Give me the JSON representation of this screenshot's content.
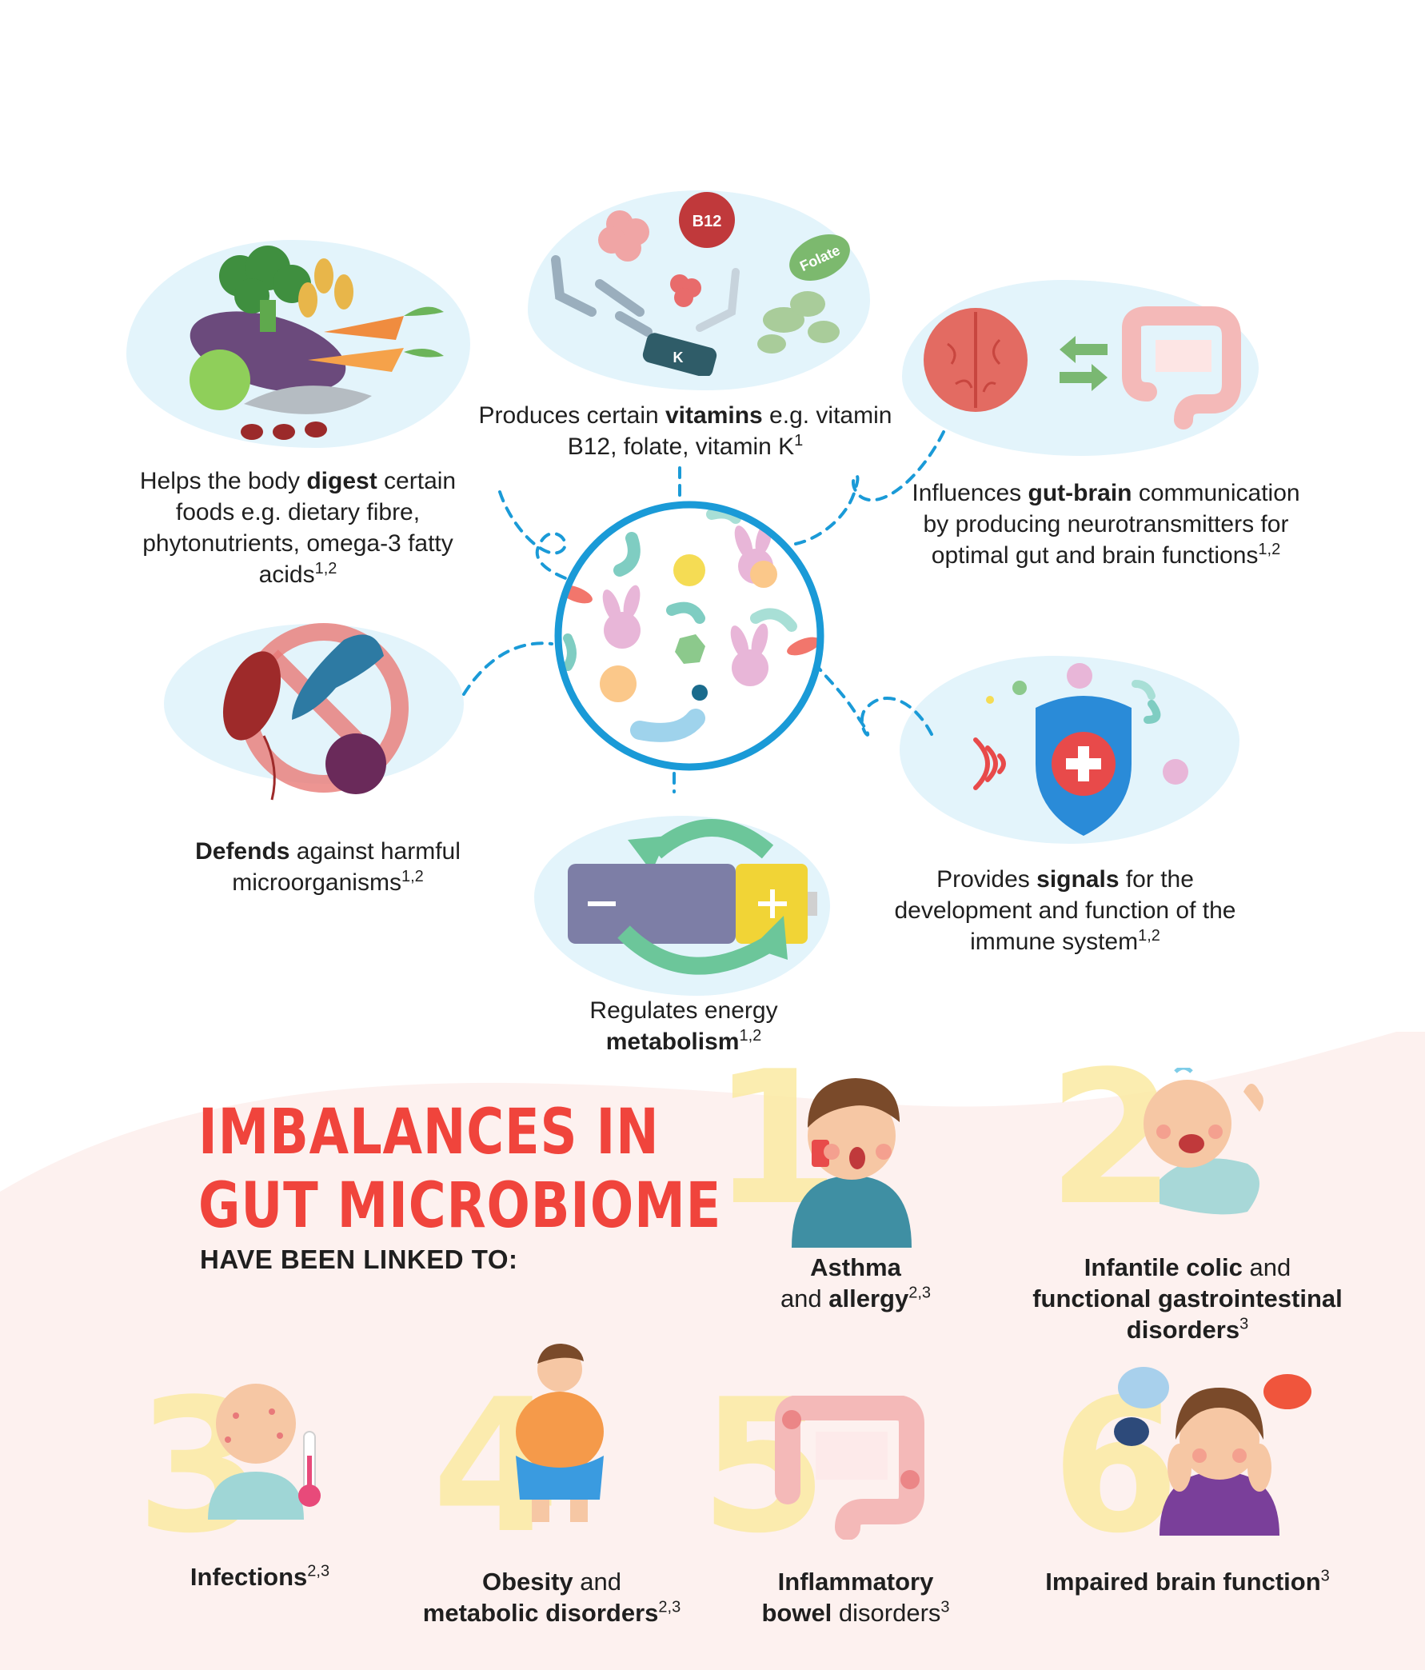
{
  "functions": {
    "digest": {
      "pre": "Helps the body ",
      "bold": "digest",
      "post": " certain foods e.g. dietary fibre, phytonutrients, omega-3 fatty acids",
      "sup": "1,2"
    },
    "vitamins": {
      "pre": "Produces certain ",
      "bold": "vitamins",
      "post": " e.g. vitamin B12, folate, vitamin K",
      "sup": "1"
    },
    "gutbrain": {
      "pre": "Influences ",
      "bold": "gut-brain",
      "post": " communication by producing neurotransmitters for optimal gut and brain functions",
      "sup": "1,2"
    },
    "defends": {
      "pre": "",
      "bold": "Defends",
      "post": " against harmful microorganisms",
      "sup": "1,2"
    },
    "signals": {
      "pre": "Provides ",
      "bold": "signals",
      "post": " for the development and function of the immune system",
      "sup": "1,2"
    },
    "metabolism": {
      "pre": "Regulates energy ",
      "bold": "metabolism",
      "post": "",
      "sup": "1,2"
    }
  },
  "vitamin_labels": {
    "b12": "B12",
    "folate": "Folate",
    "k": "K"
  },
  "imbalances": {
    "title_line1": "IMBALANCES IN",
    "title_line2": "GUT MICROBIOME",
    "subtitle": "HAVE BEEN LINKED TO:"
  },
  "conditions": [
    {
      "number": "1",
      "bold1": "Asthma",
      "text1": "",
      "text2": "and ",
      "bold2": "allergy",
      "sup": "2,3"
    },
    {
      "number": "2",
      "bold1": "Infantile colic",
      "text1": " and",
      "bold2": "functional gastrointestinal disorders",
      "sup": "3"
    },
    {
      "number": "3",
      "bold1": "Infections",
      "sup": "2,3"
    },
    {
      "number": "4",
      "bold1": "Obesity",
      "text1": " and",
      "bold2": "metabolic disorders",
      "sup": "2,3"
    },
    {
      "number": "5",
      "bold1": "Inflammatory",
      "bold2": "bowel",
      "text2": " disorders",
      "sup": "3"
    },
    {
      "number": "6",
      "bold1": "Impaired brain function",
      "sup": "3"
    }
  ],
  "colors": {
    "accent_red": "#f0443c",
    "blob_blue": "#e3f4fb",
    "circle_blue": "#1a9ad7",
    "number_yellow": "#fbeaa3",
    "pink_bg": "#fdf1ef"
  }
}
